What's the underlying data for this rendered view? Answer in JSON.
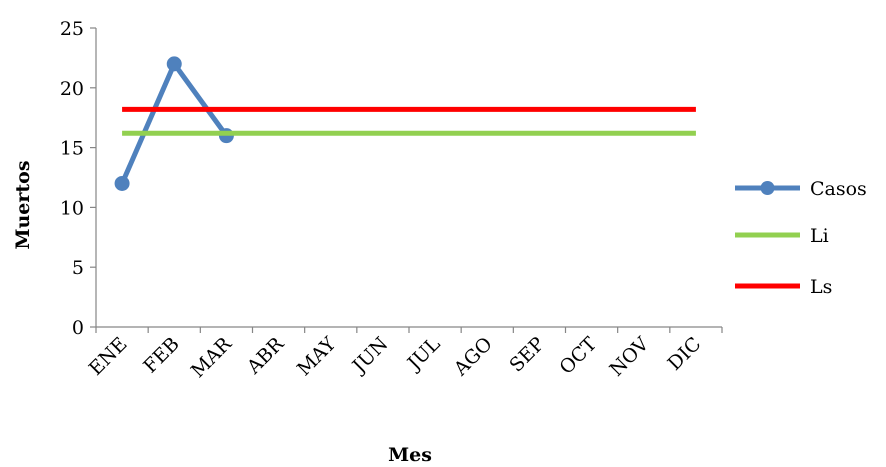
{
  "chart_data": {
    "type": "line",
    "categories": [
      "ENE",
      "FEB",
      "MAR",
      "ABR",
      "MAY",
      "JUN",
      "JUL",
      "AGO",
      "SEP",
      "OCT",
      "NOV",
      "DIC"
    ],
    "series": [
      {
        "name": "Casos",
        "values": [
          12,
          22,
          16,
          null,
          null,
          null,
          null,
          null,
          null,
          null,
          null,
          null
        ],
        "color": "#4f81bd",
        "marker": "circle"
      },
      {
        "name": "Li",
        "values": [
          16.2,
          16.2,
          16.2,
          16.2,
          16.2,
          16.2,
          16.2,
          16.2,
          16.2,
          16.2,
          16.2,
          16.2
        ],
        "color": "#92d050",
        "marker": "none"
      },
      {
        "name": "Ls",
        "values": [
          18.2,
          18.2,
          18.2,
          18.2,
          18.2,
          18.2,
          18.2,
          18.2,
          18.2,
          18.2,
          18.2,
          18.2
        ],
        "color": "#ff0000",
        "marker": "none"
      }
    ],
    "xlabel": "Mes",
    "ylabel": "Muertos",
    "ylim": [
      0,
      25
    ],
    "yticks": [
      "0",
      "5",
      "10",
      "15",
      "20",
      "25"
    ],
    "grid": false,
    "legend": "right"
  }
}
